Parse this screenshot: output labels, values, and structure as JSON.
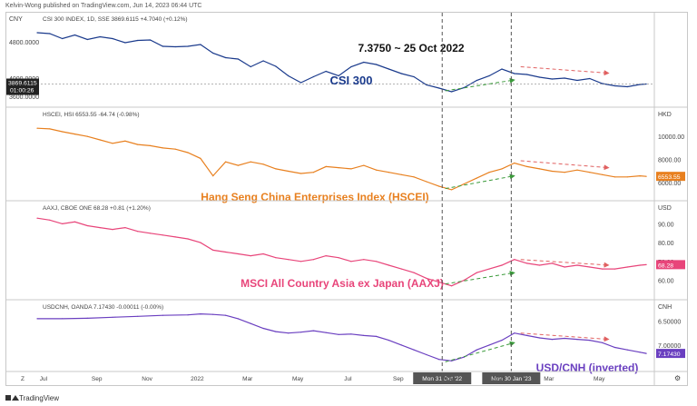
{
  "header": {
    "publisher_line": "Kelvin-Wong published on TradingView.com, Jun 14, 2023 06:44 UTC"
  },
  "footer": {
    "brand": "TradingView"
  },
  "colors": {
    "csi": "#1a3a8c",
    "hscei": "#e8801f",
    "aaxj": "#e8457a",
    "usdcnh": "#6a3fc0",
    "green_arrow": "#3a9a3a",
    "red_arrow": "#e06060",
    "vline": "#555555"
  },
  "chart_data": [
    {
      "type": "line",
      "id": "csi",
      "symbol_line": "CSI 300 INDEX, 1D, SSE  3869.6115  +4.7040 (+0.12%)",
      "currency": "CNY",
      "label": "CSI 300",
      "annotation": "7.3750 ~ 25 Oct 2022",
      "yticks": [
        "4800.0000",
        "4000.0000",
        "3600.0000"
      ],
      "last_label": "3869.6115",
      "countdown": "01:00:26",
      "ylim": [
        3500,
        5200
      ],
      "points": [
        [
          0,
          5000
        ],
        [
          2,
          4980
        ],
        [
          4,
          4870
        ],
        [
          6,
          4950
        ],
        [
          8,
          4850
        ],
        [
          10,
          4910
        ],
        [
          12,
          4870
        ],
        [
          14,
          4780
        ],
        [
          16,
          4830
        ],
        [
          18,
          4840
        ],
        [
          20,
          4700
        ],
        [
          22,
          4690
        ],
        [
          24,
          4700
        ],
        [
          26,
          4740
        ],
        [
          28,
          4550
        ],
        [
          30,
          4450
        ],
        [
          32,
          4420
        ],
        [
          34,
          4250
        ],
        [
          36,
          4380
        ],
        [
          38,
          4260
        ],
        [
          40,
          4050
        ],
        [
          42,
          3900
        ],
        [
          44,
          4030
        ],
        [
          46,
          4150
        ],
        [
          48,
          4050
        ],
        [
          50,
          4250
        ],
        [
          52,
          4350
        ],
        [
          54,
          4300
        ],
        [
          56,
          4200
        ],
        [
          58,
          4100
        ],
        [
          60,
          4030
        ],
        [
          62,
          3850
        ],
        [
          64,
          3780
        ],
        [
          66,
          3700
        ],
        [
          68,
          3790
        ],
        [
          70,
          3950
        ],
        [
          72,
          4050
        ],
        [
          74,
          4200
        ],
        [
          76,
          4100
        ],
        [
          78,
          4080
        ],
        [
          80,
          4020
        ],
        [
          82,
          3980
        ],
        [
          84,
          4000
        ],
        [
          86,
          3950
        ],
        [
          88,
          3990
        ],
        [
          90,
          3880
        ],
        [
          92,
          3830
        ],
        [
          94,
          3810
        ],
        [
          96,
          3860
        ],
        [
          97,
          3869.6
        ]
      ]
    },
    {
      "type": "line",
      "id": "hscei",
      "symbol_line": "HSCEI, HSI  6553.55  -64.74 (-0.98%)",
      "currency": "HKD",
      "label": "Hang Seng China Enterprises Index (HSCEI)",
      "yticks": [
        "10000.00",
        "8000.00",
        "6000.00"
      ],
      "last_label": "6553.55",
      "ylim": [
        5000,
        11500
      ],
      "points": [
        [
          0,
          10700
        ],
        [
          2,
          10650
        ],
        [
          4,
          10400
        ],
        [
          6,
          10200
        ],
        [
          8,
          10000
        ],
        [
          10,
          9700
        ],
        [
          12,
          9400
        ],
        [
          14,
          9600
        ],
        [
          16,
          9300
        ],
        [
          18,
          9200
        ],
        [
          20,
          9000
        ],
        [
          22,
          8900
        ],
        [
          24,
          8600
        ],
        [
          26,
          8100
        ],
        [
          28,
          6600
        ],
        [
          30,
          7800
        ],
        [
          32,
          7500
        ],
        [
          34,
          7800
        ],
        [
          36,
          7600
        ],
        [
          38,
          7200
        ],
        [
          40,
          7000
        ],
        [
          42,
          6800
        ],
        [
          44,
          6900
        ],
        [
          46,
          7400
        ],
        [
          48,
          7300
        ],
        [
          50,
          7200
        ],
        [
          52,
          7500
        ],
        [
          54,
          7100
        ],
        [
          56,
          6900
        ],
        [
          58,
          6700
        ],
        [
          60,
          6500
        ],
        [
          62,
          6100
        ],
        [
          64,
          5700
        ],
        [
          66,
          5400
        ],
        [
          68,
          5900
        ],
        [
          70,
          6400
        ],
        [
          72,
          6900
        ],
        [
          74,
          7200
        ],
        [
          76,
          7700
        ],
        [
          78,
          7400
        ],
        [
          80,
          7200
        ],
        [
          82,
          7000
        ],
        [
          84,
          6900
        ],
        [
          86,
          7100
        ],
        [
          88,
          6900
        ],
        [
          90,
          6700
        ],
        [
          92,
          6500
        ],
        [
          94,
          6500
        ],
        [
          96,
          6600
        ],
        [
          97,
          6553.55
        ]
      ]
    },
    {
      "type": "line",
      "id": "aaxj",
      "symbol_line": "AAXJ, CBOE ONE  68.28  +0.81 (+1.20%)",
      "currency": "USD",
      "label": "MSCI All Country Asia ex Japan (AAXJ)",
      "yticks": [
        "90.00",
        "80.00",
        "70.00",
        "60.00"
      ],
      "last_label": "68.28",
      "ylim": [
        53,
        96
      ],
      "points": [
        [
          0,
          93
        ],
        [
          2,
          92
        ],
        [
          4,
          90
        ],
        [
          6,
          91
        ],
        [
          8,
          89
        ],
        [
          10,
          88
        ],
        [
          12,
          87
        ],
        [
          14,
          88
        ],
        [
          16,
          86
        ],
        [
          18,
          85
        ],
        [
          20,
          84
        ],
        [
          22,
          83
        ],
        [
          24,
          82
        ],
        [
          26,
          80
        ],
        [
          28,
          76
        ],
        [
          30,
          75
        ],
        [
          32,
          74
        ],
        [
          34,
          73
        ],
        [
          36,
          74
        ],
        [
          38,
          72
        ],
        [
          40,
          71
        ],
        [
          42,
          70
        ],
        [
          44,
          71
        ],
        [
          46,
          73
        ],
        [
          48,
          72
        ],
        [
          50,
          70
        ],
        [
          52,
          71
        ],
        [
          54,
          70
        ],
        [
          56,
          68
        ],
        [
          58,
          66
        ],
        [
          60,
          64
        ],
        [
          62,
          61
        ],
        [
          64,
          59
        ],
        [
          66,
          57
        ],
        [
          68,
          60
        ],
        [
          70,
          64
        ],
        [
          72,
          66
        ],
        [
          74,
          68
        ],
        [
          76,
          71
        ],
        [
          78,
          69
        ],
        [
          80,
          68
        ],
        [
          82,
          69
        ],
        [
          84,
          67
        ],
        [
          86,
          68
        ],
        [
          88,
          67
        ],
        [
          90,
          66
        ],
        [
          92,
          66
        ],
        [
          94,
          67
        ],
        [
          96,
          68
        ],
        [
          97,
          68.28
        ]
      ]
    },
    {
      "type": "line",
      "id": "usdcnh",
      "symbol_line": "USDCNH, OANDA  7.17430  -0.00011 (-0.00%)",
      "currency": "CNH",
      "label": "USD/CNH (inverted)",
      "yticks": [
        "6.50000",
        "7.00000"
      ],
      "last_label": "7.17430",
      "ylim": [
        7.4,
        6.3
      ],
      "points": [
        [
          0,
          6.45
        ],
        [
          4,
          6.45
        ],
        [
          8,
          6.44
        ],
        [
          12,
          6.42
        ],
        [
          16,
          6.4
        ],
        [
          20,
          6.38
        ],
        [
          24,
          6.37
        ],
        [
          26,
          6.35
        ],
        [
          28,
          6.36
        ],
        [
          30,
          6.38
        ],
        [
          32,
          6.45
        ],
        [
          34,
          6.55
        ],
        [
          36,
          6.65
        ],
        [
          38,
          6.72
        ],
        [
          40,
          6.75
        ],
        [
          42,
          6.73
        ],
        [
          44,
          6.7
        ],
        [
          46,
          6.74
        ],
        [
          48,
          6.78
        ],
        [
          50,
          6.77
        ],
        [
          52,
          6.8
        ],
        [
          54,
          6.82
        ],
        [
          56,
          6.9
        ],
        [
          58,
          7.0
        ],
        [
          60,
          7.1
        ],
        [
          62,
          7.2
        ],
        [
          64,
          7.3
        ],
        [
          66,
          7.33
        ],
        [
          68,
          7.25
        ],
        [
          70,
          7.1
        ],
        [
          72,
          7.0
        ],
        [
          74,
          6.9
        ],
        [
          76,
          6.75
        ],
        [
          78,
          6.8
        ],
        [
          80,
          6.85
        ],
        [
          82,
          6.88
        ],
        [
          84,
          6.86
        ],
        [
          86,
          6.88
        ],
        [
          88,
          6.9
        ],
        [
          90,
          6.95
        ],
        [
          92,
          7.05
        ],
        [
          94,
          7.1
        ],
        [
          96,
          7.15
        ],
        [
          97,
          7.1743
        ]
      ]
    }
  ],
  "x_axis": {
    "ticks": [
      "Jul",
      "Sep",
      "Nov",
      "2022",
      "Mar",
      "May",
      "Jul",
      "Sep",
      "Nov",
      "2023",
      "Mar",
      "May"
    ],
    "tick_positions": [
      1,
      9.5,
      17.5,
      25.5,
      33.5,
      41.5,
      49.5,
      57.5,
      65.5,
      73.5,
      81.5,
      89.5
    ],
    "markers": [
      {
        "label": "Mon 31 Oct '22",
        "x": 64.5
      },
      {
        "label": "Mon 30 Jan '23",
        "x": 75.5
      }
    ],
    "corner_left": "Z",
    "corner_right": "⚙"
  },
  "trend_arrows": {
    "green": [
      {
        "pane": 0,
        "from": [
          65,
          3720
        ],
        "to": [
          76,
          3960
        ]
      },
      {
        "pane": 1,
        "from": [
          65,
          5500
        ],
        "to": [
          76,
          6600
        ]
      },
      {
        "pane": 2,
        "from": [
          65,
          58
        ],
        "to": [
          76,
          64
        ]
      },
      {
        "pane": 3,
        "from": [
          65,
          7.35
        ],
        "to": [
          76,
          6.95
        ]
      }
    ],
    "red": [
      {
        "pane": 0,
        "from": [
          77,
          4250
        ],
        "to": [
          91,
          4110
        ]
      },
      {
        "pane": 1,
        "from": [
          77,
          7900
        ],
        "to": [
          91,
          7300
        ]
      },
      {
        "pane": 2,
        "from": [
          77,
          71
        ],
        "to": [
          91,
          68
        ]
      },
      {
        "pane": 3,
        "from": [
          77,
          6.75
        ],
        "to": [
          91,
          6.88
        ]
      }
    ]
  }
}
